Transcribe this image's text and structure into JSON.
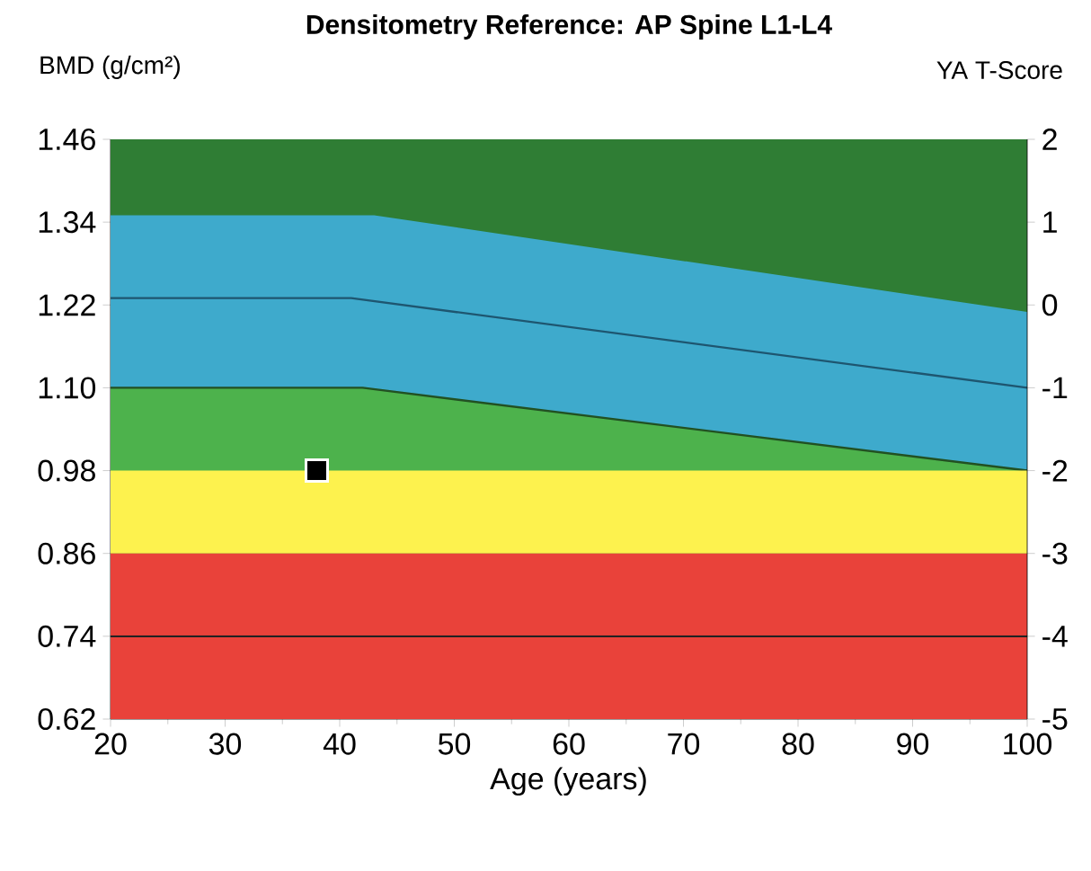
{
  "chart_data": {
    "type": "area",
    "title": "Densitometry Reference: AP Spine L1-L4",
    "ylabel": "BMD (g/cm²)",
    "y2label": "YA T-Score",
    "xlabel": "Age (years)",
    "xlim": [
      20,
      100
    ],
    "xticks": [
      20,
      30,
      40,
      50,
      60,
      70,
      80,
      90,
      100
    ],
    "ylim": [
      0.62,
      1.46
    ],
    "yticks": [
      0.62,
      0.74,
      0.86,
      0.98,
      {
        "value": 1.1,
        "label": "1.10"
      },
      1.22,
      1.34,
      1.46
    ],
    "y2lim": [
      -5,
      2
    ],
    "y2ticks": [
      -5,
      -4,
      -3,
      -2,
      -1,
      0,
      1,
      2
    ],
    "series": [
      {
        "color": "#2f7d34",
        "x": [
          20,
          100
        ],
        "values": [
          1.46,
          1.46
        ]
      },
      {
        "color": "#3eaacc",
        "x": [
          20,
          43,
          100
        ],
        "values": [
          1.35,
          1.35,
          1.21
        ]
      },
      {
        "color": "#4db24c",
        "line_style": "solid",
        "x": [
          20,
          42,
          100
        ],
        "values": [
          1.1,
          1.1,
          0.98
        ]
      },
      {
        "type": "line",
        "color": "#1e5670",
        "x": [
          20,
          41,
          100
        ],
        "values": [
          1.23,
          1.23,
          1.1
        ]
      },
      {
        "type": "scatter",
        "color": "#000000",
        "marker": "square",
        "x": [
          38
        ],
        "values": [
          0.98
        ]
      }
    ],
    "bands": [
      {
        "axis": "y",
        "from": 0.86,
        "to": 0.98,
        "color": "#fdf24e"
      },
      {
        "axis": "y",
        "from": 0.62,
        "to": 0.86,
        "color": "#e9423a"
      }
    ],
    "ref_lines": [
      {
        "axis": "y",
        "value": 0.74,
        "color": "#222222"
      }
    ]
  }
}
